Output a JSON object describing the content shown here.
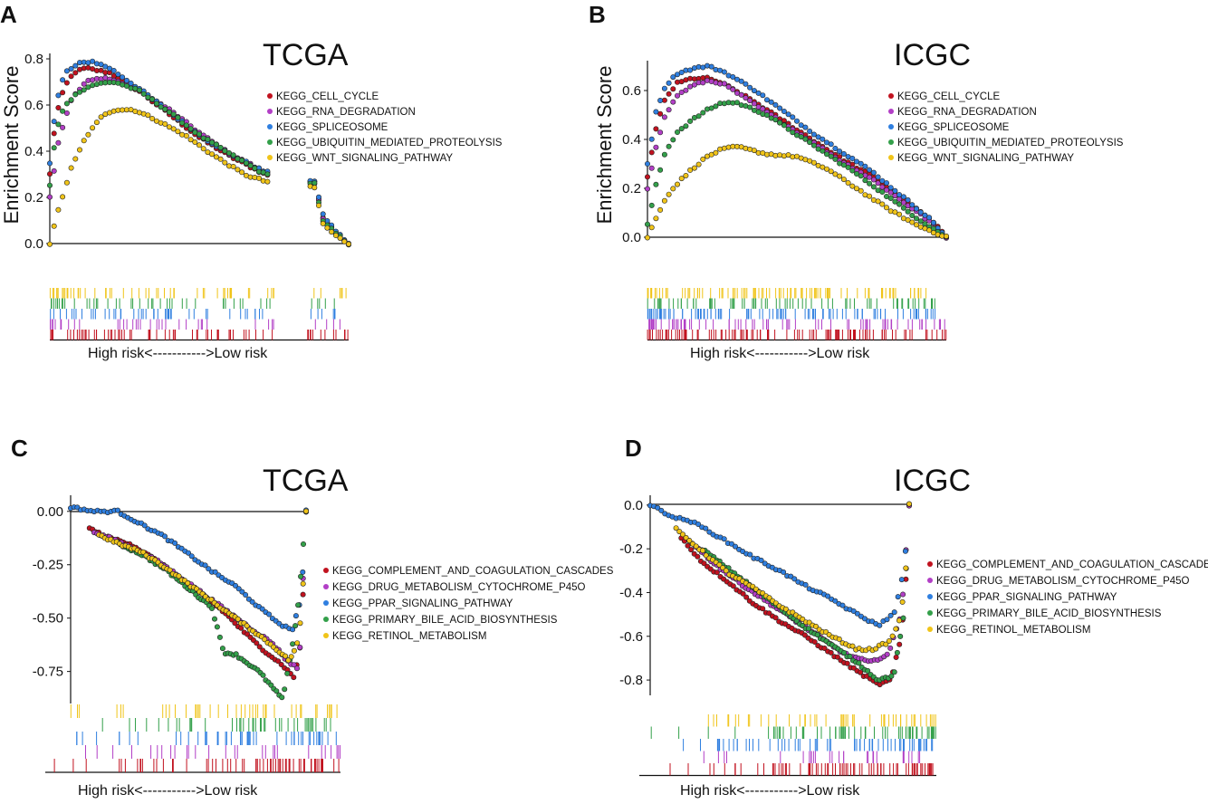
{
  "figure": {
    "risk_label": "High risk<----------->Low risk",
    "colors": [
      "#c1121f",
      "#b23fc6",
      "#2f7fe0",
      "#33a04a",
      "#f0c419"
    ]
  },
  "chart_data": [
    {
      "panel": "A",
      "type": "scatter",
      "title": "TCGA",
      "ylabel": "Enrichment Score",
      "ylim": [
        0,
        0.8
      ],
      "yticks": [
        0.0,
        0.2,
        0.4,
        0.6,
        0.8
      ],
      "yticklabels": [
        "0.0",
        "0.2",
        "0.4",
        "0.6",
        "0.8"
      ],
      "legend": [
        "KEGG_CELL_CYCLE",
        "KEGG_RNA_DEGRADATION",
        "KEGG_SPLICEOSOME",
        "KEGG_UBIQUITIN_MEDIATED_PROTEOLYSIS",
        "KEGG_WNT_SIGNALING_PATHWAY"
      ],
      "series": [
        {
          "name": "KEGG_CELL_CYCLE",
          "x": [
            0,
            0.02,
            0.05,
            0.08,
            0.12,
            0.2,
            0.3,
            0.4,
            0.5,
            0.6,
            0.72,
            0.89,
            0.91,
            0.96,
            1.0
          ],
          "values": [
            0.3,
            0.55,
            0.68,
            0.74,
            0.76,
            0.74,
            0.66,
            0.56,
            0.46,
            0.38,
            0.3,
            0.26,
            0.12,
            0.04,
            0.0
          ]
        },
        {
          "name": "KEGG_RNA_DEGRADATION",
          "x": [
            0,
            0.03,
            0.07,
            0.12,
            0.18,
            0.28,
            0.4,
            0.5,
            0.6,
            0.72,
            0.89,
            0.91,
            0.96,
            1.0
          ],
          "values": [
            0.2,
            0.45,
            0.62,
            0.7,
            0.72,
            0.68,
            0.58,
            0.48,
            0.39,
            0.31,
            0.27,
            0.11,
            0.04,
            0.0
          ]
        },
        {
          "name": "KEGG_SPLICEOSOME",
          "x": [
            0,
            0.02,
            0.05,
            0.1,
            0.14,
            0.2,
            0.3,
            0.4,
            0.5,
            0.6,
            0.72,
            0.89,
            0.91,
            0.96,
            1.0
          ],
          "values": [
            0.35,
            0.6,
            0.74,
            0.78,
            0.79,
            0.76,
            0.67,
            0.57,
            0.47,
            0.39,
            0.31,
            0.27,
            0.13,
            0.05,
            0.0
          ]
        },
        {
          "name": "KEGG_UBIQUITIN_MEDIATED_PROTEOLYSIS",
          "x": [
            0,
            0.02,
            0.05,
            0.1,
            0.15,
            0.22,
            0.3,
            0.4,
            0.5,
            0.6,
            0.72,
            0.89,
            0.91,
            0.96,
            1.0
          ],
          "values": [
            0.25,
            0.48,
            0.6,
            0.66,
            0.69,
            0.7,
            0.66,
            0.57,
            0.47,
            0.39,
            0.3,
            0.26,
            0.1,
            0.04,
            0.0
          ]
        },
        {
          "name": "KEGG_WNT_SIGNALING_PATHWAY",
          "x": [
            0,
            0.03,
            0.07,
            0.12,
            0.18,
            0.22,
            0.28,
            0.35,
            0.45,
            0.55,
            0.65,
            0.72,
            0.89,
            0.91,
            0.96,
            1.0
          ],
          "values": [
            0.0,
            0.15,
            0.32,
            0.46,
            0.56,
            0.58,
            0.58,
            0.54,
            0.47,
            0.38,
            0.3,
            0.27,
            0.24,
            0.09,
            0.03,
            0.0
          ]
        }
      ],
      "rug_density": [
        0.55,
        0.3,
        0.4,
        0.35,
        0.45
      ]
    },
    {
      "panel": "B",
      "type": "scatter",
      "title": "ICGC",
      "ylabel": "Enrichment Score",
      "ylim": [
        0,
        0.7
      ],
      "yticks": [
        0.0,
        0.2,
        0.4,
        0.6
      ],
      "yticklabels": [
        "0.0",
        "0.2",
        "0.4",
        "0.6"
      ],
      "legend": [
        "KEGG_CELL_CYCLE",
        "KEGG_RNA_DEGRADATION",
        "KEGG_SPLICEOSOME",
        "KEGG_UBIQUITIN_MEDIATED_PROTEOLYSIS",
        "KEGG_WNT_SIGNALING_PATHWAY"
      ],
      "series": [
        {
          "name": "KEGG_CELL_CYCLE",
          "x": [
            0,
            0.03,
            0.06,
            0.1,
            0.15,
            0.2,
            0.25,
            0.35,
            0.45,
            0.55,
            0.65,
            0.75,
            0.85,
            0.95,
            1.0
          ],
          "values": [
            0.25,
            0.45,
            0.57,
            0.63,
            0.65,
            0.65,
            0.63,
            0.56,
            0.48,
            0.4,
            0.32,
            0.25,
            0.16,
            0.07,
            0.0
          ]
        },
        {
          "name": "KEGG_RNA_DEGRADATION",
          "x": [
            0,
            0.03,
            0.06,
            0.1,
            0.15,
            0.2,
            0.25,
            0.35,
            0.45,
            0.55,
            0.65,
            0.75,
            0.85,
            0.95,
            1.0
          ],
          "values": [
            0.2,
            0.38,
            0.5,
            0.58,
            0.62,
            0.64,
            0.63,
            0.55,
            0.47,
            0.39,
            0.31,
            0.24,
            0.15,
            0.06,
            0.0
          ]
        },
        {
          "name": "KEGG_SPLICEOSOME",
          "x": [
            0,
            0.03,
            0.06,
            0.1,
            0.15,
            0.2,
            0.25,
            0.35,
            0.45,
            0.55,
            0.65,
            0.75,
            0.85,
            0.95,
            1.0
          ],
          "values": [
            0.3,
            0.52,
            0.62,
            0.67,
            0.69,
            0.7,
            0.68,
            0.61,
            0.52,
            0.43,
            0.35,
            0.27,
            0.17,
            0.07,
            0.0
          ]
        },
        {
          "name": "KEGG_UBIQUITIN_MEDIATED_PROTEOLYSIS",
          "x": [
            0,
            0.03,
            0.06,
            0.1,
            0.15,
            0.2,
            0.25,
            0.3,
            0.4,
            0.5,
            0.6,
            0.7,
            0.8,
            0.9,
            1.0
          ],
          "values": [
            0.05,
            0.22,
            0.35,
            0.43,
            0.48,
            0.52,
            0.55,
            0.55,
            0.5,
            0.42,
            0.34,
            0.26,
            0.17,
            0.08,
            0.0
          ]
        },
        {
          "name": "KEGG_WNT_SIGNALING_PATHWAY",
          "x": [
            0,
            0.03,
            0.06,
            0.1,
            0.15,
            0.2,
            0.25,
            0.3,
            0.4,
            0.5,
            0.6,
            0.7,
            0.8,
            0.9,
            1.0
          ],
          "values": [
            0.0,
            0.08,
            0.16,
            0.22,
            0.28,
            0.33,
            0.36,
            0.37,
            0.34,
            0.33,
            0.28,
            0.2,
            0.12,
            0.05,
            0.0
          ]
        }
      ],
      "rug_density": [
        0.75,
        0.6,
        0.7,
        0.55,
        0.7
      ]
    },
    {
      "panel": "C",
      "type": "scatter",
      "title": "TCGA",
      "ylabel": "",
      "ylim": [
        -0.9,
        0.05
      ],
      "yticks": [
        0.0,
        -0.25,
        -0.5,
        -0.75
      ],
      "yticklabels": [
        "0.00",
        "-0.25",
        "-0.50",
        "-0.75"
      ],
      "legend": [
        "KEGG_COMPLEMENT_AND_COAGULATION_CASCADES",
        "KEGG_DRUG_METABOLISM_CYTOCHROME_P45O",
        "KEGG_PPAR_SIGNALING_PATHWAY",
        "KEGG_PRIMARY_BILE_ACID_BIOSYNTHESIS",
        "KEGG_RETINOL_METABOLISM"
      ],
      "series": [
        {
          "name": "KEGG_COMPLEMENT_AND_COAGULATION_CASCADES",
          "x": [
            0.08,
            0.15,
            0.25,
            0.35,
            0.45,
            0.55,
            0.65,
            0.75,
            0.82,
            0.9,
            0.95,
            0.98,
            1.0
          ],
          "values": [
            -0.08,
            -0.12,
            -0.15,
            -0.22,
            -0.3,
            -0.38,
            -0.47,
            -0.58,
            -0.65,
            -0.72,
            -0.78,
            -0.6,
            0.0
          ]
        },
        {
          "name": "KEGG_DRUG_METABOLISM_CYTOCHROME_P45O",
          "x": [
            0.1,
            0.18,
            0.28,
            0.38,
            0.48,
            0.58,
            0.68,
            0.78,
            0.86,
            0.92,
            0.97,
            1.0
          ],
          "values": [
            -0.1,
            -0.13,
            -0.18,
            -0.24,
            -0.32,
            -0.4,
            -0.48,
            -0.56,
            -0.62,
            -0.7,
            -0.74,
            0.0
          ]
        },
        {
          "name": "KEGG_PPAR_SIGNALING_PATHWAY",
          "x": [
            0,
            0.05,
            0.1,
            0.2,
            0.3,
            0.4,
            0.5,
            0.6,
            0.7,
            0.8,
            0.88,
            0.94,
            0.98,
            1.0
          ],
          "values": [
            0.02,
            0.01,
            0.0,
            0.0,
            -0.06,
            -0.12,
            -0.2,
            -0.28,
            -0.35,
            -0.45,
            -0.52,
            -0.56,
            -0.4,
            0.0
          ]
        },
        {
          "name": "KEGG_PRIMARY_BILE_ACID_BIOSYNTHESIS",
          "x": [
            0.2,
            0.3,
            0.4,
            0.5,
            0.6,
            0.65,
            0.7,
            0.8,
            0.9,
            0.94,
            0.97,
            1.0
          ],
          "values": [
            -0.15,
            -0.2,
            -0.27,
            -0.36,
            -0.45,
            -0.66,
            -0.67,
            -0.75,
            -0.88,
            -0.65,
            -0.4,
            0.0
          ]
        },
        {
          "name": "KEGG_RETINOL_METABOLISM",
          "x": [
            0.12,
            0.2,
            0.3,
            0.4,
            0.5,
            0.6,
            0.7,
            0.8,
            0.88,
            0.93,
            0.97,
            0.99,
            1.0
          ],
          "values": [
            -0.11,
            -0.15,
            -0.19,
            -0.26,
            -0.34,
            -0.42,
            -0.5,
            -0.58,
            -0.65,
            -0.7,
            -0.6,
            -0.3,
            0.0
          ]
        }
      ],
      "rug_density": [
        0.45,
        0.2,
        0.35,
        0.3,
        0.3
      ]
    },
    {
      "panel": "D",
      "type": "scatter",
      "title": "ICGC",
      "ylabel": "",
      "ylim": [
        -0.87,
        0.02
      ],
      "yticks": [
        0.0,
        -0.2,
        -0.4,
        -0.6,
        -0.8
      ],
      "yticklabels": [
        "0.0",
        "-0.2",
        "-0.4",
        "-0.6",
        "-0.8"
      ],
      "legend": [
        "KEGG_COMPLEMENT_AND_COAGULATION_CASCADES",
        "KEGG_DRUG_METABOLISM_CYTOCHROME_P45O",
        "KEGG_PPAR_SIGNALING_PATHWAY",
        "KEGG_PRIMARY_BILE_ACID_BIOSYNTHESIS",
        "KEGG_RETINOL_METABOLISM"
      ],
      "series": [
        {
          "name": "KEGG_COMPLEMENT_AND_COAGULATION_CASCADES",
          "x": [
            0.12,
            0.2,
            0.3,
            0.4,
            0.5,
            0.6,
            0.7,
            0.8,
            0.88,
            0.93,
            0.97,
            0.99,
            1.0
          ],
          "values": [
            -0.15,
            -0.26,
            -0.35,
            -0.45,
            -0.53,
            -0.6,
            -0.68,
            -0.76,
            -0.82,
            -0.8,
            -0.6,
            -0.3,
            0.0
          ]
        },
        {
          "name": "KEGG_DRUG_METABOLISM_CYTOCHROME_P45O",
          "x": [
            0.15,
            0.25,
            0.35,
            0.45,
            0.55,
            0.65,
            0.75,
            0.85,
            0.92,
            0.97,
            1.0
          ],
          "values": [
            -0.16,
            -0.27,
            -0.36,
            -0.44,
            -0.52,
            -0.6,
            -0.68,
            -0.72,
            -0.68,
            -0.5,
            0.0
          ]
        },
        {
          "name": "KEGG_PPAR_SIGNALING_PATHWAY",
          "x": [
            0,
            0.1,
            0.15,
            0.2,
            0.3,
            0.4,
            0.5,
            0.6,
            0.7,
            0.8,
            0.88,
            0.94,
            0.98,
            1.0
          ],
          "values": [
            0.0,
            -0.06,
            -0.07,
            -0.1,
            -0.17,
            -0.24,
            -0.3,
            -0.37,
            -0.43,
            -0.5,
            -0.55,
            -0.5,
            -0.3,
            0.0
          ]
        },
        {
          "name": "KEGG_PRIMARY_BILE_ACID_BIOSYNTHESIS",
          "x": [
            0.2,
            0.3,
            0.4,
            0.5,
            0.6,
            0.7,
            0.8,
            0.88,
            0.94,
            0.98,
            1.0
          ],
          "values": [
            -0.2,
            -0.29,
            -0.38,
            -0.47,
            -0.56,
            -0.64,
            -0.72,
            -0.8,
            -0.78,
            -0.5,
            0.0
          ]
        },
        {
          "name": "KEGG_RETINOL_METABOLISM",
          "x": [
            0.1,
            0.2,
            0.3,
            0.4,
            0.5,
            0.6,
            0.7,
            0.8,
            0.86,
            0.93,
            0.97,
            0.99,
            1.0
          ],
          "values": [
            -0.11,
            -0.21,
            -0.31,
            -0.38,
            -0.46,
            -0.53,
            -0.6,
            -0.66,
            -0.66,
            -0.62,
            -0.5,
            -0.25,
            0.0
          ]
        }
      ],
      "rug_density": [
        0.55,
        0.2,
        0.45,
        0.45,
        0.35
      ]
    }
  ]
}
